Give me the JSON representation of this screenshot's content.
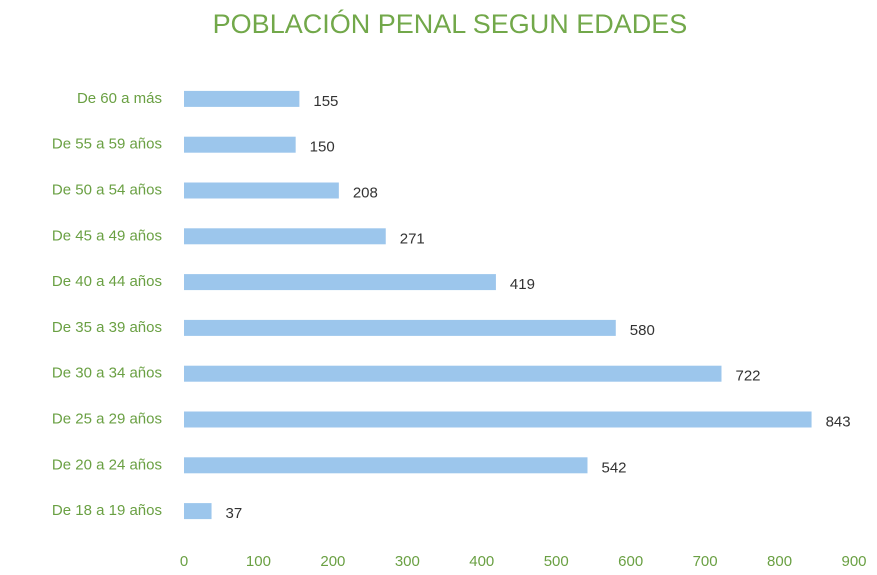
{
  "chart_data": {
    "type": "barh",
    "title": "POBLACIÓN PENAL SEGUN EDADES",
    "categories": [
      "De 60 a más",
      "De 55 a 59 años",
      "De 50 a 54 años",
      "De 45 a 49 años",
      "De 40 a 44 años",
      "De 35 a 39 años",
      "De 30 a 34 años",
      "De 25 a 29 años",
      "De 20 a 24 años",
      "De 18 a 19 años"
    ],
    "values": [
      155,
      150,
      208,
      271,
      419,
      580,
      722,
      843,
      542,
      37
    ],
    "color": "#9cc6ec",
    "xlim": [
      0,
      900
    ],
    "xticks": [
      0,
      100,
      200,
      300,
      400,
      500,
      600,
      700,
      800,
      900
    ],
    "grid": false
  }
}
